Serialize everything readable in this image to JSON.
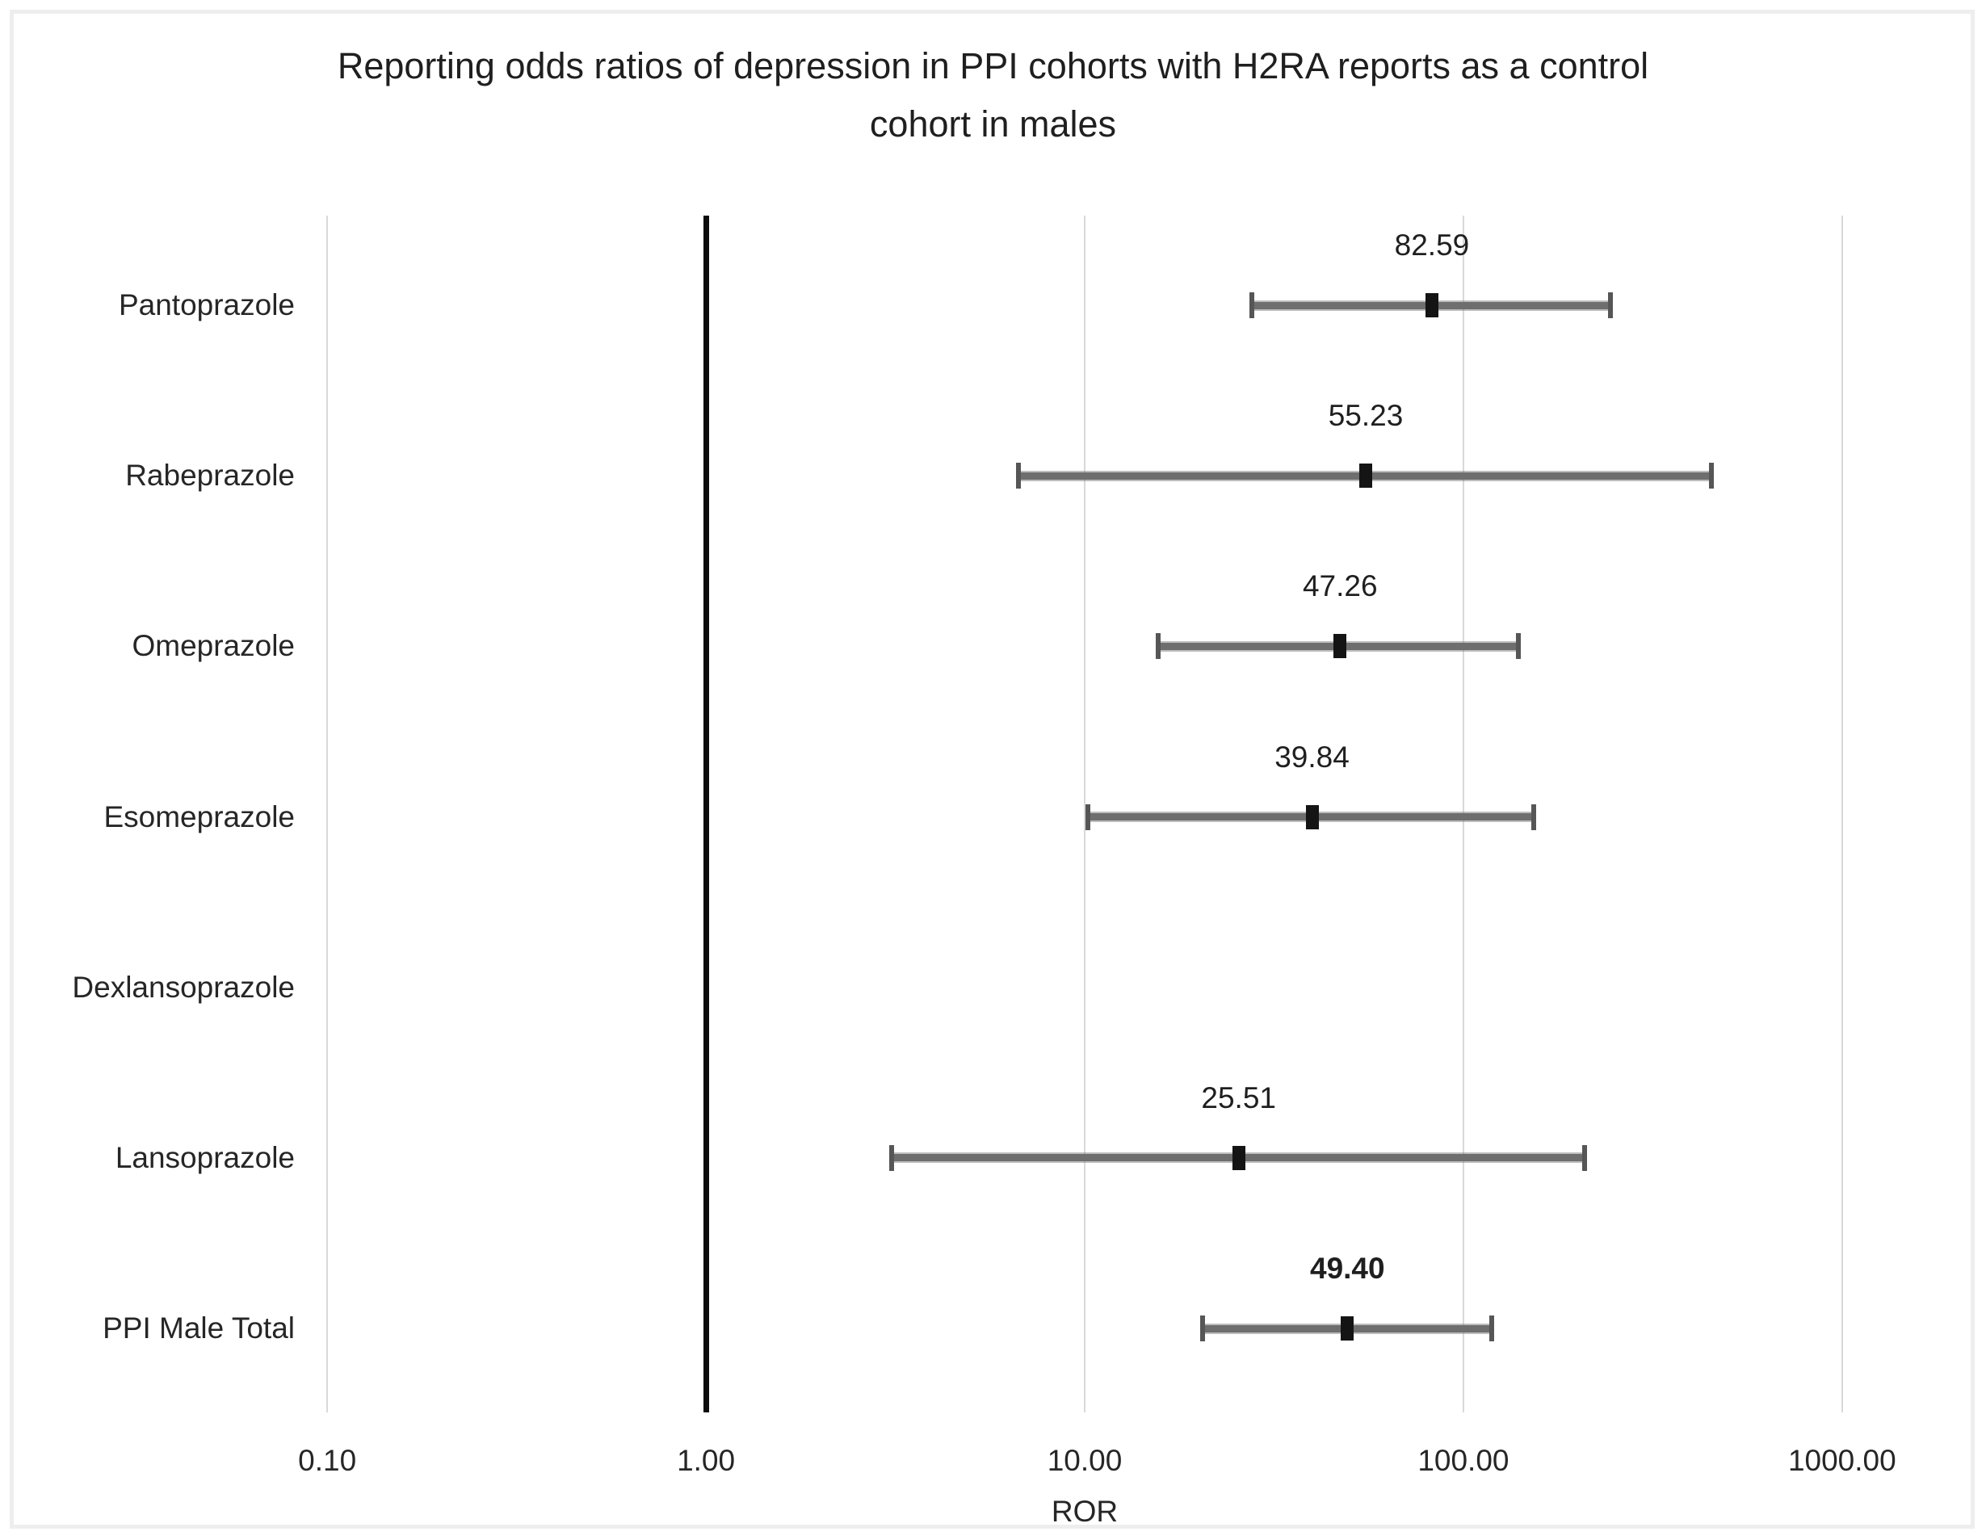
{
  "figure": {
    "title_line1": "Reporting odds ratios of depression in PPI cohorts with H2RA reports as a control",
    "title_line2": "cohort in males",
    "background": "#ffffff",
    "border_color": "#eeeeee"
  },
  "chart_data": {
    "type": "scatter",
    "subtype": "forest-plot",
    "title": "Reporting odds ratios of depression in PPI cohorts with H2RA reports as a control cohort in males",
    "xlabel": "ROR",
    "x_scale": "log10",
    "x_ticks": [
      "0.10",
      "1.00",
      "10.00",
      "100.00",
      "1000.00"
    ],
    "x_tick_values": [
      0.1,
      1,
      10,
      100,
      1000
    ],
    "x_range": [
      0.05,
      2000
    ],
    "reference_line_x": 1,
    "grid": "vertical-only",
    "legend": "none",
    "categories": [
      "Pantoprazole",
      "Rabeprazole",
      "Omeprazole",
      "Esomeprazole",
      "Dexlansoprazole",
      "Lansoprazole",
      "PPI Male Total"
    ],
    "series": [
      {
        "category": "Pantoprazole",
        "ror": 82.59,
        "ror_label": "82.59",
        "ci_low_est": 27.6,
        "ci_high_est": 244,
        "bold": false
      },
      {
        "category": "Rabeprazole",
        "ror": 55.23,
        "ror_label": "55.23",
        "ci_low_est": 6.7,
        "ci_high_est": 451,
        "bold": false
      },
      {
        "category": "Omeprazole",
        "ror": 47.26,
        "ror_label": "47.26",
        "ci_low_est": 15.6,
        "ci_high_est": 140,
        "bold": false
      },
      {
        "category": "Esomeprazole",
        "ror": 39.84,
        "ror_label": "39.84",
        "ci_low_est": 10.2,
        "ci_high_est": 153,
        "bold": false
      },
      {
        "category": "Dexlansoprazole",
        "ror": null,
        "ror_label": "",
        "ci_low_est": null,
        "ci_high_est": null,
        "bold": false
      },
      {
        "category": "Lansoprazole",
        "ror": 25.51,
        "ror_label": "25.51",
        "ci_low_est": 3.1,
        "ci_high_est": 209,
        "bold": false
      },
      {
        "category": "PPI Male Total",
        "ror": 49.4,
        "ror_label": "49.40",
        "ci_low_est": 20.5,
        "ci_high_est": 119,
        "bold": true
      }
    ],
    "colors": {
      "error_bar": "#6e6e6e",
      "error_cap": "#565656",
      "marker": "#141414",
      "gridline": "#d9d9d9",
      "reference_line": "#0d0d0d",
      "text": "#262626"
    }
  }
}
